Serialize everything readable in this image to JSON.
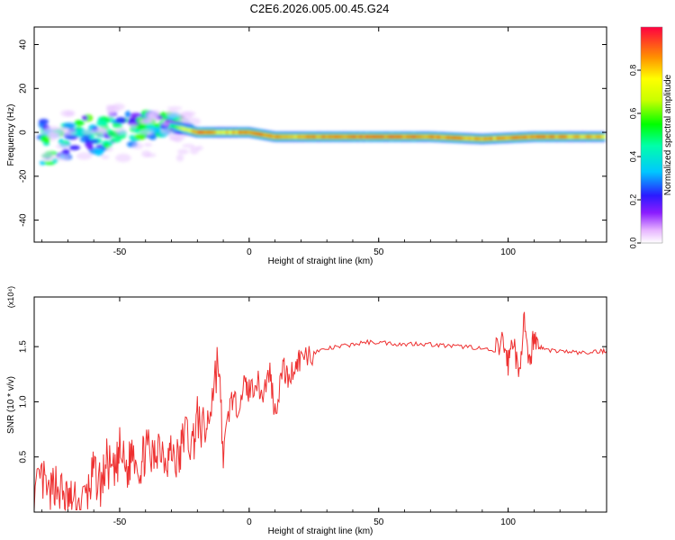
{
  "page_title": "C2E6.2026.005.00.45.G24",
  "chart_data": [
    {
      "type": "heatmap",
      "xlabel": "Height of straight line (km)",
      "ylabel": "Frequency (Hz)",
      "xlim": [
        -83,
        138
      ],
      "ylim": [
        -50,
        48
      ],
      "xticks": [
        -50,
        0,
        50,
        100
      ],
      "xtick_labels": [
        "-50",
        "0",
        "50",
        "100"
      ],
      "yticks": [
        -40,
        -20,
        0,
        20,
        40
      ],
      "ytick_labels": [
        "-40",
        "-20",
        "0",
        "20",
        "40"
      ],
      "colorbar": {
        "label": "Normalized spectral amplitude",
        "range": [
          0,
          1
        ],
        "ticks": [
          0.0,
          0.2,
          0.4,
          0.6,
          0.8
        ],
        "tick_labels": [
          "0.0",
          "0.2",
          "0.4",
          "0.6",
          "0.8"
        ]
      },
      "ridge": [
        {
          "x": -80,
          "f": 0,
          "a": 0.55
        },
        {
          "x": -70,
          "f": 1,
          "a": 0.5
        },
        {
          "x": -60,
          "f": 2,
          "a": 0.5
        },
        {
          "x": -50,
          "f": 4,
          "a": 0.5
        },
        {
          "x": -40,
          "f": 4,
          "a": 0.5
        },
        {
          "x": -30,
          "f": 3,
          "a": 0.55
        },
        {
          "x": -20,
          "f": 0,
          "a": 1.0
        },
        {
          "x": -10,
          "f": 0,
          "a": 0.8
        },
        {
          "x": 0,
          "f": 0,
          "a": 1.0
        },
        {
          "x": 10,
          "f": -2,
          "a": 0.9
        },
        {
          "x": 30,
          "f": -2,
          "a": 0.95
        },
        {
          "x": 50,
          "f": -2,
          "a": 1.0
        },
        {
          "x": 70,
          "f": -2,
          "a": 0.95
        },
        {
          "x": 90,
          "f": -3,
          "a": 0.9
        },
        {
          "x": 110,
          "f": -2,
          "a": 0.95
        },
        {
          "x": 138,
          "f": -2,
          "a": 0.9
        }
      ],
      "lower_branch": [
        {
          "x": -75,
          "f": -14
        },
        {
          "x": -60,
          "f": -10
        },
        {
          "x": -50,
          "f": -7
        },
        {
          "x": -40,
          "f": -4
        },
        {
          "x": -30,
          "f": 0
        }
      ]
    },
    {
      "type": "line",
      "xlabel": "Height of straight line (km)",
      "ylabel": "SNR (10 * v/v)",
      "scale_label": "(x10⁴)",
      "xlim": [
        -83,
        138
      ],
      "ylim": [
        0,
        1.95
      ],
      "xticks": [
        -50,
        0,
        50,
        100
      ],
      "xtick_labels": [
        "-50",
        "0",
        "50",
        "100"
      ],
      "yticks": [
        0.5,
        1.0,
        1.5
      ],
      "ytick_labels": [
        "0.5",
        "1.0",
        "1.5"
      ],
      "series": [
        {
          "name": "SNR",
          "color": "#ee3030",
          "x": [
            -83,
            -80,
            -77,
            -75,
            -72,
            -70,
            -68,
            -65,
            -62,
            -60,
            -57,
            -55,
            -52,
            -50,
            -47,
            -45,
            -42,
            -40,
            -37,
            -35,
            -32,
            -30,
            -27,
            -25,
            -22,
            -20,
            -17,
            -15,
            -12,
            -10,
            -7,
            -5,
            -2,
            0,
            3,
            5,
            8,
            10,
            13,
            15,
            18,
            20,
            25,
            30,
            35,
            40,
            45,
            50,
            55,
            60,
            65,
            70,
            75,
            80,
            85,
            90,
            95,
            98,
            100,
            102,
            104,
            106,
            108,
            110,
            112,
            115,
            120,
            125,
            130,
            135,
            138
          ],
          "y": [
            0.12,
            0.3,
            0.1,
            0.28,
            0.15,
            0.1,
            0.08,
            0.05,
            0.2,
            0.35,
            0.25,
            0.45,
            0.3,
            0.55,
            0.35,
            0.6,
            0.4,
            0.58,
            0.45,
            0.65,
            0.5,
            0.55,
            0.45,
            0.75,
            0.6,
            0.85,
            0.7,
            0.95,
            1.4,
            0.5,
            1.05,
            0.95,
            1.15,
            1.1,
            1.2,
            1.05,
            1.28,
            0.9,
            1.32,
            1.2,
            1.35,
            1.4,
            1.45,
            1.48,
            1.5,
            1.52,
            1.54,
            1.54,
            1.53,
            1.52,
            1.53,
            1.52,
            1.51,
            1.5,
            1.5,
            1.48,
            1.45,
            1.55,
            1.35,
            1.6,
            1.2,
            1.75,
            1.3,
            1.62,
            1.5,
            1.47,
            1.46,
            1.45,
            1.44,
            1.46,
            1.46
          ]
        }
      ]
    }
  ]
}
